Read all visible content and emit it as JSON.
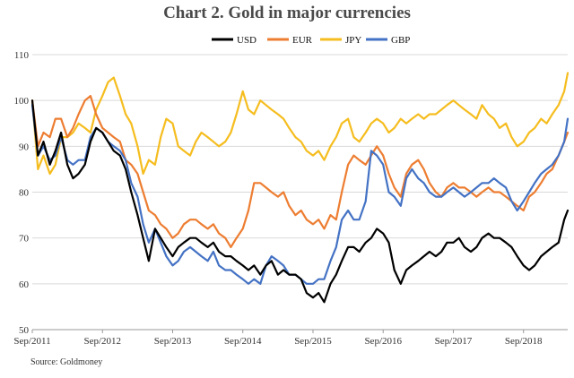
{
  "chart_data": {
    "type": "line",
    "title": "Chart 2. Gold in major currencies",
    "source": "Source: Goldmoney",
    "xlabel": "",
    "ylabel": "",
    "ylim": [
      50,
      110
    ],
    "yticks": [
      "50",
      "60",
      "70",
      "80",
      "90",
      "100",
      "110"
    ],
    "x_start": 2011.67,
    "x_end": 2019.3,
    "xticks": [
      {
        "label": "Sep/2011",
        "x": 2011.67
      },
      {
        "label": "Sep/2012",
        "x": 2012.67
      },
      {
        "label": "Sep/2013",
        "x": 2013.67
      },
      {
        "label": "Sep/2014",
        "x": 2014.67
      },
      {
        "label": "Sep/2015",
        "x": 2015.67
      },
      {
        "label": "Sep/2016",
        "x": 2016.67
      },
      {
        "label": "Sep/2017",
        "x": 2017.67
      },
      {
        "label": "Sep/2018",
        "x": 2018.67
      }
    ],
    "grid": {
      "horizontal": true,
      "vertical": false
    },
    "legend_position": "top",
    "series": [
      {
        "name": "USD",
        "color": "#000000",
        "x": [
          2011.67,
          2011.75,
          2011.83,
          2011.92,
          2012.0,
          2012.08,
          2012.17,
          2012.25,
          2012.33,
          2012.42,
          2012.5,
          2012.58,
          2012.67,
          2012.75,
          2012.83,
          2012.92,
          2013.0,
          2013.08,
          2013.17,
          2013.25,
          2013.33,
          2013.42,
          2013.5,
          2013.58,
          2013.67,
          2013.75,
          2013.83,
          2013.92,
          2014.0,
          2014.08,
          2014.17,
          2014.25,
          2014.33,
          2014.42,
          2014.5,
          2014.58,
          2014.67,
          2014.75,
          2014.83,
          2014.92,
          2015.0,
          2015.08,
          2015.17,
          2015.25,
          2015.33,
          2015.42,
          2015.5,
          2015.58,
          2015.67,
          2015.75,
          2015.83,
          2015.92,
          2016.0,
          2016.08,
          2016.17,
          2016.25,
          2016.33,
          2016.42,
          2016.5,
          2016.58,
          2016.67,
          2016.75,
          2016.83,
          2016.92,
          2017.0,
          2017.08,
          2017.17,
          2017.25,
          2017.33,
          2017.42,
          2017.5,
          2017.58,
          2017.67,
          2017.75,
          2017.83,
          2017.92,
          2018.0,
          2018.08,
          2018.17,
          2018.25,
          2018.33,
          2018.42,
          2018.5,
          2018.58,
          2018.67,
          2018.75,
          2018.83,
          2018.92,
          2019.0,
          2019.08,
          2019.17,
          2019.25,
          2019.3
        ],
        "values": [
          100,
          88,
          91,
          86,
          89,
          93,
          86,
          83,
          84,
          86,
          91,
          94,
          93,
          91,
          89,
          88,
          85,
          80,
          75,
          70,
          65,
          72,
          70,
          68,
          66,
          68,
          69,
          70,
          70,
          69,
          68,
          69,
          67,
          66,
          66,
          65,
          64,
          63,
          64,
          62,
          64,
          65,
          62,
          63,
          62,
          62,
          61,
          58,
          57,
          58,
          56,
          60,
          62,
          65,
          68,
          68,
          67,
          69,
          70,
          72,
          71,
          69,
          63,
          60,
          63,
          64,
          65,
          66,
          67,
          66,
          67,
          69,
          69,
          70,
          68,
          67,
          68,
          70,
          71,
          70,
          70,
          69,
          68,
          66,
          64,
          63,
          64,
          66,
          67,
          68,
          69,
          74,
          76
        ]
      },
      {
        "name": "EUR",
        "color": "#ed7d31",
        "x": [
          2011.67,
          2011.75,
          2011.83,
          2011.92,
          2012.0,
          2012.08,
          2012.17,
          2012.25,
          2012.33,
          2012.42,
          2012.5,
          2012.58,
          2012.67,
          2012.75,
          2012.83,
          2012.92,
          2013.0,
          2013.08,
          2013.17,
          2013.25,
          2013.33,
          2013.42,
          2013.5,
          2013.58,
          2013.67,
          2013.75,
          2013.83,
          2013.92,
          2014.0,
          2014.08,
          2014.17,
          2014.25,
          2014.33,
          2014.42,
          2014.5,
          2014.58,
          2014.67,
          2014.75,
          2014.83,
          2014.92,
          2015.0,
          2015.08,
          2015.17,
          2015.25,
          2015.33,
          2015.42,
          2015.5,
          2015.58,
          2015.67,
          2015.75,
          2015.83,
          2015.92,
          2016.0,
          2016.08,
          2016.17,
          2016.25,
          2016.33,
          2016.42,
          2016.5,
          2016.58,
          2016.67,
          2016.75,
          2016.83,
          2016.92,
          2017.0,
          2017.08,
          2017.17,
          2017.25,
          2017.33,
          2017.42,
          2017.5,
          2017.58,
          2017.67,
          2017.75,
          2017.83,
          2017.92,
          2018.0,
          2018.08,
          2018.17,
          2018.25,
          2018.33,
          2018.42,
          2018.5,
          2018.58,
          2018.67,
          2018.75,
          2018.83,
          2018.92,
          2019.0,
          2019.08,
          2019.17,
          2019.25,
          2019.3
        ],
        "values": [
          100,
          90,
          93,
          92,
          96,
          96,
          92,
          94,
          97,
          100,
          101,
          97,
          94,
          93,
          92,
          91,
          87,
          86,
          84,
          80,
          76,
          75,
          73,
          72,
          70,
          71,
          73,
          74,
          74,
          73,
          72,
          73,
          71,
          70,
          68,
          70,
          72,
          76,
          82,
          82,
          81,
          80,
          79,
          80,
          77,
          75,
          76,
          74,
          73,
          74,
          72,
          75,
          74,
          80,
          86,
          88,
          87,
          86,
          88,
          90,
          88,
          84,
          81,
          79,
          84,
          86,
          87,
          85,
          82,
          80,
          79,
          81,
          82,
          81,
          81,
          80,
          79,
          80,
          81,
          80,
          80,
          79,
          78,
          77,
          76,
          79,
          80,
          82,
          84,
          85,
          88,
          91,
          93
        ]
      },
      {
        "name": "JPY",
        "color": "#f5bd1f",
        "x": [
          2011.67,
          2011.75,
          2011.83,
          2011.92,
          2012.0,
          2012.08,
          2012.17,
          2012.25,
          2012.33,
          2012.42,
          2012.5,
          2012.58,
          2012.67,
          2012.75,
          2012.83,
          2012.92,
          2013.0,
          2013.08,
          2013.17,
          2013.25,
          2013.33,
          2013.42,
          2013.5,
          2013.58,
          2013.67,
          2013.75,
          2013.83,
          2013.92,
          2014.0,
          2014.08,
          2014.17,
          2014.25,
          2014.33,
          2014.42,
          2014.5,
          2014.58,
          2014.67,
          2014.75,
          2014.83,
          2014.92,
          2015.0,
          2015.08,
          2015.17,
          2015.25,
          2015.33,
          2015.42,
          2015.5,
          2015.58,
          2015.67,
          2015.75,
          2015.83,
          2015.92,
          2016.0,
          2016.08,
          2016.17,
          2016.25,
          2016.33,
          2016.42,
          2016.5,
          2016.58,
          2016.67,
          2016.75,
          2016.83,
          2016.92,
          2017.0,
          2017.08,
          2017.17,
          2017.25,
          2017.33,
          2017.42,
          2017.5,
          2017.58,
          2017.67,
          2017.75,
          2017.83,
          2017.92,
          2018.0,
          2018.08,
          2018.17,
          2018.25,
          2018.33,
          2018.42,
          2018.5,
          2018.58,
          2018.67,
          2018.75,
          2018.83,
          2018.92,
          2019.0,
          2019.08,
          2019.17,
          2019.25,
          2019.3
        ],
        "values": [
          100,
          85,
          88,
          84,
          86,
          92,
          92,
          93,
          95,
          94,
          93,
          98,
          101,
          104,
          105,
          101,
          97,
          95,
          90,
          84,
          87,
          86,
          92,
          96,
          95,
          90,
          89,
          88,
          91,
          93,
          92,
          91,
          90,
          91,
          93,
          97,
          102,
          98,
          97,
          100,
          99,
          98,
          97,
          96,
          94,
          92,
          91,
          89,
          88,
          89,
          87,
          90,
          92,
          95,
          96,
          92,
          91,
          93,
          95,
          96,
          95,
          93,
          94,
          96,
          95,
          96,
          97,
          96,
          97,
          97,
          98,
          99,
          100,
          99,
          98,
          97,
          96,
          99,
          97,
          96,
          94,
          95,
          92,
          90,
          91,
          93,
          94,
          96,
          95,
          97,
          99,
          102,
          106
        ]
      },
      {
        "name": "GBP",
        "color": "#4472c4",
        "x": [
          2011.67,
          2011.75,
          2011.83,
          2011.92,
          2012.0,
          2012.08,
          2012.17,
          2012.25,
          2012.33,
          2012.42,
          2012.5,
          2012.58,
          2012.67,
          2012.75,
          2012.83,
          2012.92,
          2013.0,
          2013.08,
          2013.17,
          2013.25,
          2013.33,
          2013.42,
          2013.5,
          2013.58,
          2013.67,
          2013.75,
          2013.83,
          2013.92,
          2014.0,
          2014.08,
          2014.17,
          2014.25,
          2014.33,
          2014.42,
          2014.5,
          2014.58,
          2014.67,
          2014.75,
          2014.83,
          2014.92,
          2015.0,
          2015.08,
          2015.17,
          2015.25,
          2015.33,
          2015.42,
          2015.5,
          2015.58,
          2015.67,
          2015.75,
          2015.83,
          2015.92,
          2016.0,
          2016.08,
          2016.17,
          2016.25,
          2016.33,
          2016.42,
          2016.5,
          2016.58,
          2016.67,
          2016.75,
          2016.83,
          2016.92,
          2017.0,
          2017.08,
          2017.17,
          2017.25,
          2017.33,
          2017.42,
          2017.5,
          2017.58,
          2017.67,
          2017.75,
          2017.83,
          2017.92,
          2018.0,
          2018.08,
          2018.17,
          2018.25,
          2018.33,
          2018.42,
          2018.5,
          2018.58,
          2018.67,
          2018.75,
          2018.83,
          2018.92,
          2019.0,
          2019.08,
          2019.17,
          2019.25,
          2019.3
        ],
        "values": [
          99,
          88,
          90,
          87,
          88,
          92,
          87,
          86,
          87,
          87,
          92,
          94,
          93,
          91,
          90,
          89,
          87,
          82,
          79,
          73,
          69,
          72,
          69,
          66,
          64,
          65,
          67,
          68,
          67,
          66,
          65,
          67,
          64,
          63,
          63,
          62,
          61,
          60,
          61,
          60,
          64,
          66,
          65,
          64,
          62,
          62,
          61,
          60,
          60,
          61,
          61,
          65,
          68,
          74,
          76,
          74,
          74,
          78,
          89,
          88,
          86,
          80,
          79,
          77,
          83,
          85,
          83,
          82,
          80,
          79,
          79,
          80,
          81,
          80,
          79,
          80,
          81,
          82,
          82,
          83,
          82,
          81,
          78,
          76,
          78,
          80,
          82,
          84,
          85,
          86,
          88,
          91,
          96
        ]
      }
    ]
  }
}
